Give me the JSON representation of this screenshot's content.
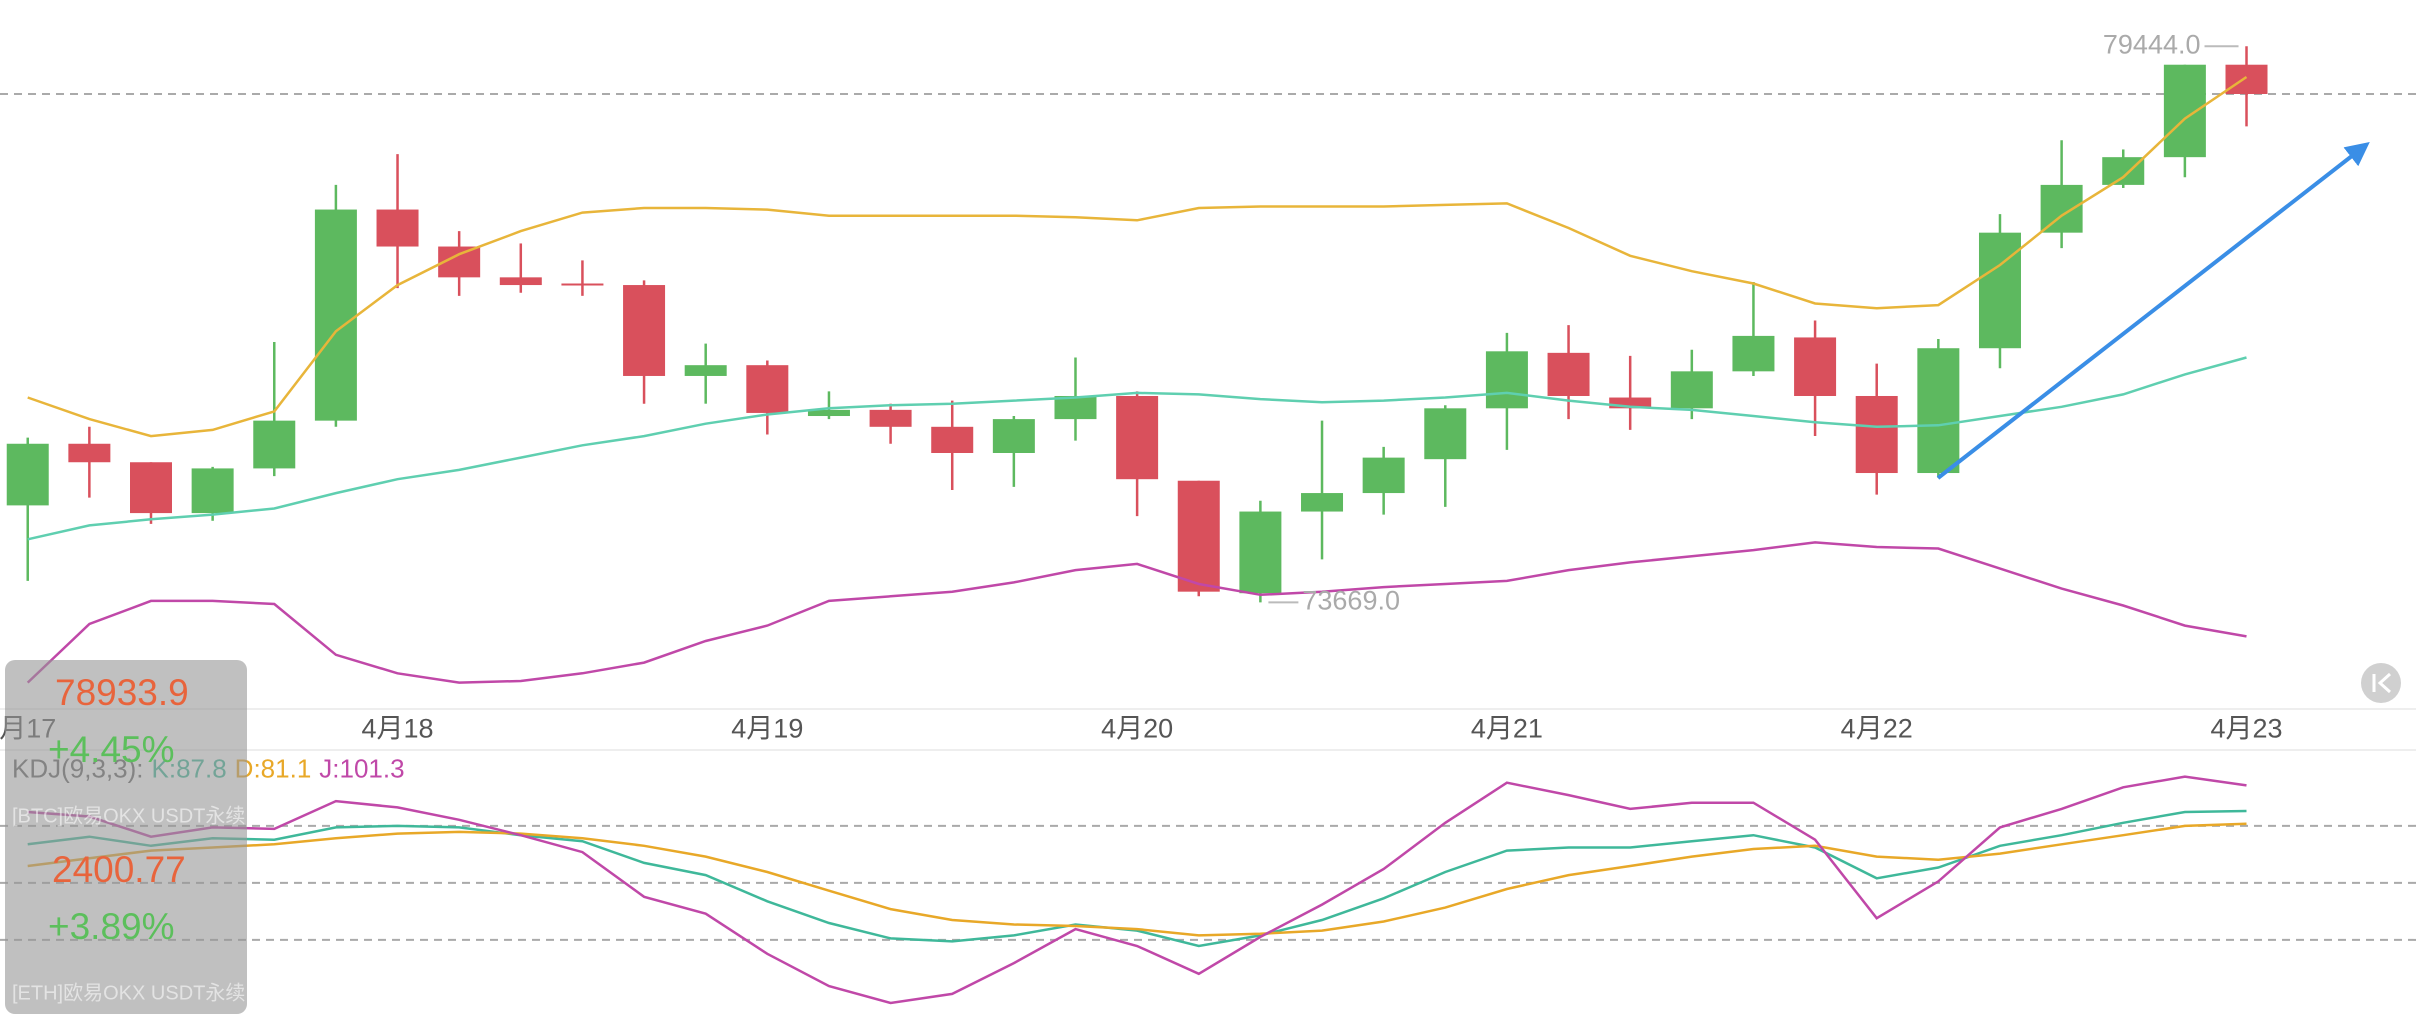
{
  "chart_data": [
    {
      "type": "candlestick",
      "categories": [
        "月17",
        null,
        null,
        null,
        null,
        null,
        "4月18",
        null,
        null,
        null,
        null,
        null,
        "4月19",
        null,
        null,
        null,
        null,
        null,
        "4月20",
        null,
        null,
        null,
        null,
        null,
        "4月21",
        null,
        null,
        null,
        null,
        null,
        "4月22",
        null,
        null,
        null,
        null,
        null,
        "4月23"
      ],
      "open": [
        74676,
        75316,
        75124,
        74596,
        75060,
        75556,
        77748,
        77364,
        77044,
        76980,
        76964,
        76020,
        76132,
        75604,
        75668,
        75492,
        75220,
        75572,
        75812,
        74932,
        73764,
        74612,
        74804,
        75156,
        75684,
        76260,
        75796,
        75684,
        76068,
        76420,
        75812,
        75012,
        76308,
        77508,
        78004,
        78292,
        79252
      ],
      "high": [
        75380,
        75492,
        75124,
        75076,
        76372,
        78004,
        78324,
        77524,
        77396,
        77220,
        77012,
        76356,
        76180,
        75860,
        75732,
        75764,
        75604,
        76212,
        75860,
        74932,
        74724,
        75556,
        75284,
        75716,
        76468,
        76548,
        76228,
        76292,
        76996,
        76596,
        76148,
        76404,
        77700,
        78468,
        78372,
        79252,
        79444
      ],
      "low": [
        73892,
        74756,
        74484,
        74516,
        74980,
        75492,
        76932,
        76852,
        76884,
        76852,
        75732,
        75732,
        75412,
        75572,
        75316,
        74836,
        74868,
        75348,
        74564,
        73732,
        73669,
        74116,
        74580,
        74660,
        75252,
        75572,
        75460,
        75572,
        76020,
        75396,
        74788,
        74964,
        76100,
        77348,
        77972,
        78084,
        78612
      ],
      "close": [
        75316,
        75124,
        74596,
        75060,
        75556,
        77748,
        77364,
        77044,
        76964,
        76964,
        76020,
        76132,
        75636,
        75668,
        75492,
        75220,
        75572,
        75812,
        74948,
        73780,
        74612,
        74804,
        75172,
        75684,
        76276,
        75812,
        75684,
        76068,
        76436,
        75812,
        75012,
        76308,
        77508,
        78004,
        78292,
        79252,
        78948
      ],
      "up_color": "#5db95f",
      "down_color": "#d9505c",
      "lines": [
        {
          "color": "#e8b53a",
          "values": [
            75796,
            75572,
            75396,
            75460,
            75652,
            76484,
            76964,
            77284,
            77524,
            77716,
            77764,
            77764,
            77748,
            77684,
            77684,
            77684,
            77684,
            77668,
            77636,
            77764,
            77780,
            77780,
            77780,
            77796,
            77812,
            77556,
            77268,
            77108,
            76980,
            76772,
            76724,
            76756,
            77172,
            77684,
            78084,
            78692,
            79124
          ]
        },
        {
          "color": "#5fcfb0",
          "values": [
            74324,
            74468,
            74532,
            74580,
            74644,
            74804,
            74948,
            75044,
            75172,
            75300,
            75396,
            75524,
            75620,
            75684,
            75716,
            75732,
            75764,
            75796,
            75844,
            75828,
            75780,
            75748,
            75764,
            75796,
            75844,
            75764,
            75700,
            75668,
            75604,
            75540,
            75492,
            75508,
            75604,
            75700,
            75828,
            76036,
            76212
          ]
        },
        {
          "color": "#c048a8",
          "values": [
            72836,
            73444,
            73684,
            73684,
            73652,
            73124,
            72932,
            72836,
            72852,
            72932,
            73044,
            73268,
            73428,
            73684,
            73732,
            73780,
            73876,
            74004,
            74068,
            73860,
            73748,
            73780,
            73828,
            73860,
            73892,
            74004,
            74084,
            74148,
            74212,
            74292,
            74244,
            74228,
            74020,
            73812,
            73636,
            73428,
            73316
          ]
        }
      ],
      "max_label": {
        "value": 79444,
        "label": "79444.0"
      },
      "min_label": {
        "value": 73669,
        "label": "73669.0"
      },
      "ylim": [
        72564,
        79924
      ]
    },
    {
      "type": "line",
      "indicator": "KDJ(9,3,3):",
      "series": [
        {
          "name": "K:87.8",
          "color": "#3fb89a",
          "values": [
            70.3,
            74.3,
            69.5,
            73.5,
            72.7,
            79.2,
            80,
            79.2,
            75.1,
            71.9,
            60.5,
            54.1,
            40.3,
            28.9,
            20.8,
            19.2,
            22.4,
            28.1,
            24.9,
            16.8,
            22.4,
            30.5,
            41.9,
            55.7,
            67,
            68.6,
            68.6,
            71.9,
            75.1,
            68.6,
            52.4,
            58.1,
            69.5,
            75.1,
            81.6,
            87.3,
            87.8
          ]
        },
        {
          "name": "D:81.1",
          "color": "#e8a828",
          "values": [
            58.9,
            63,
            67,
            68.6,
            70.3,
            73.5,
            75.9,
            76.8,
            75.9,
            73.5,
            69.5,
            63.8,
            55.7,
            45.9,
            36.2,
            30.5,
            28.1,
            27.3,
            25.7,
            22.4,
            23.2,
            24.9,
            29.7,
            37,
            46.8,
            54.1,
            58.9,
            63.8,
            67.8,
            69.5,
            63.8,
            62.2,
            65.4,
            70.3,
            75.1,
            80,
            81.1
          ]
        },
        {
          "name": "J:101.3",
          "color": "#c048a8",
          "values": [
            87.3,
            84.9,
            74.3,
            79.2,
            78.4,
            93,
            89.7,
            83.2,
            75.1,
            66.2,
            42.7,
            33.8,
            12.7,
            -4.3,
            -13.2,
            -8.4,
            7.8,
            25.7,
            16.8,
            2.2,
            21.6,
            38.6,
            57.3,
            81.6,
            102.7,
            96.2,
            88.9,
            92.2,
            92.2,
            72.7,
            31.4,
            50.8,
            79.2,
            88.9,
            100.3,
            105.9,
            101.3
          ]
        }
      ],
      "ylim": [
        -27,
        119.7
      ],
      "yticks": [
        20,
        50,
        80
      ]
    }
  ],
  "quotes": [
    {
      "price": "78933.9",
      "change": "+4.45%",
      "market": "[BTC]欧易OKX USDT永续"
    },
    {
      "price": "2400.77",
      "change": "+3.89%",
      "market": "[ETH]欧易OKX USDT永续"
    }
  ]
}
